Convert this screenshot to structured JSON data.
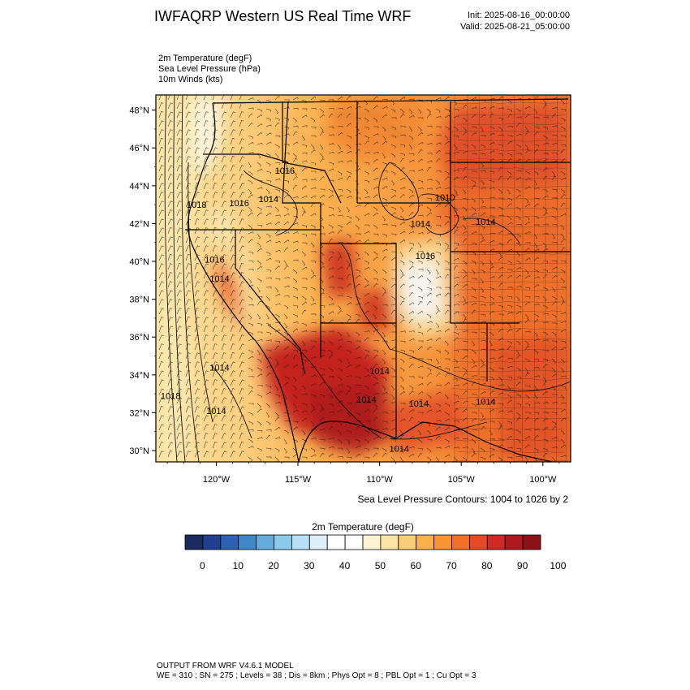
{
  "header": {
    "title": "IWFAQRP Western US Real Time WRF",
    "init": "Init: 2025-08-16_00:00:00",
    "valid": "Valid: 2025-08-21_05:00:00"
  },
  "fields": [
    "2m Temperature   (degF)",
    "Sea Level Pressure   (hPa)",
    "10m Winds   (kts)"
  ],
  "map": {
    "lat_range": [
      29.4,
      48.8
    ],
    "lon_range": [
      -123.7,
      -98.3
    ],
    "lat_ticks": [
      30,
      32,
      34,
      36,
      38,
      40,
      42,
      44,
      46,
      48
    ],
    "lat_tick_labels": [
      "30°N",
      "32°N",
      "34°N",
      "36°N",
      "38°N",
      "40°N",
      "42°N",
      "44°N",
      "46°N",
      "48°N"
    ],
    "lon_ticks": [
      -120,
      -115,
      -110,
      -105,
      -100
    ],
    "lon_tick_labels": [
      "120°W",
      "115°W",
      "110°W",
      "105°W",
      "100°W"
    ],
    "pressure_labels": [
      {
        "text": "1018",
        "lon": -121.2,
        "lat": 43.0
      },
      {
        "text": "1016",
        "lon": -118.6,
        "lat": 43.1
      },
      {
        "text": "1014",
        "lon": -116.8,
        "lat": 43.3
      },
      {
        "text": "1016",
        "lon": -115.8,
        "lat": 44.8
      },
      {
        "text": "1010",
        "lon": -106.0,
        "lat": 43.4
      },
      {
        "text": "1014",
        "lon": -107.5,
        "lat": 42.0
      },
      {
        "text": "1014",
        "lon": -103.5,
        "lat": 42.1
      },
      {
        "text": "1016",
        "lon": -107.2,
        "lat": 40.3
      },
      {
        "text": "1016",
        "lon": -120.1,
        "lat": 40.1
      },
      {
        "text": "1014",
        "lon": -119.8,
        "lat": 39.1
      },
      {
        "text": "1014",
        "lon": -119.8,
        "lat": 34.4
      },
      {
        "text": "1018",
        "lon": -122.8,
        "lat": 32.9
      },
      {
        "text": "1014",
        "lon": -120.0,
        "lat": 32.1
      },
      {
        "text": "1014",
        "lon": -110.0,
        "lat": 34.2
      },
      {
        "text": "1014",
        "lon": -110.8,
        "lat": 32.7
      },
      {
        "text": "1014",
        "lon": -107.6,
        "lat": 32.5
      },
      {
        "text": "1014",
        "lon": -103.5,
        "lat": 32.6
      },
      {
        "text": "1014",
        "lon": -108.8,
        "lat": 30.1
      }
    ]
  },
  "contour_note": "Sea Level Pressure Contours: 1004 to 1026 by 2",
  "colorbar": {
    "title": "2m Temperature  (degF)",
    "colors": [
      "#1a2a5c",
      "#203f8e",
      "#2b62b2",
      "#3f87c8",
      "#64acdc",
      "#8ccaed",
      "#b5e0f6",
      "#ddf0fb",
      "#ffffff",
      "#ffffff",
      "#fff4d2",
      "#fee5a5",
      "#fdce79",
      "#fdb050",
      "#f99336",
      "#f26f2a",
      "#e44a26",
      "#cc2a22",
      "#ae191f",
      "#8b1218"
    ],
    "labels": [
      "0",
      "10",
      "20",
      "30",
      "40",
      "50",
      "60",
      "70",
      "80",
      "90",
      "100"
    ]
  },
  "footer": {
    "line1": "OUTPUT FROM WRF V4.6.1 MODEL",
    "line2": "WE = 310 ; SN = 275 ; Levels = 38 ; Dis = 8km ; Phys Opt = 8 ; PBL Opt = 1 ; Cu Opt = 3"
  }
}
